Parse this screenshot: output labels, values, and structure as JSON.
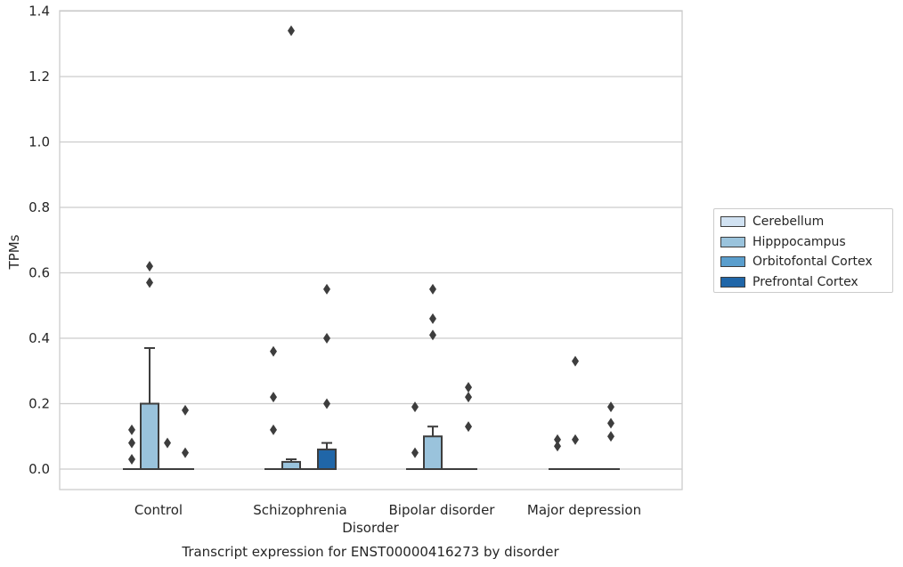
{
  "chart_data": {
    "type": "box",
    "title": "Transcript expression for ENST00000416273 by disorder",
    "xlabel": "Disorder",
    "ylabel": "TPMs",
    "ylim": [
      -0.065,
      1.41
    ],
    "yticks": [
      "0.0",
      "0.2",
      "0.4",
      "0.6",
      "0.8",
      "1.0",
      "1.2",
      "1.4"
    ],
    "grid": true,
    "legend_position": "right",
    "categories": [
      "Control",
      "Schizophrenia",
      "Bipolar disorder",
      "Major depression"
    ],
    "series": [
      {
        "name": "Cerebellum",
        "color": "#d1e2f2",
        "boxes": [
          {
            "q1": 0,
            "median": 0,
            "q3": 0,
            "whisker_low": 0,
            "whisker_high": 0,
            "outliers": [
              0.12,
              0.08,
              0.03
            ]
          },
          {
            "q1": 0,
            "median": 0,
            "q3": 0,
            "whisker_low": 0,
            "whisker_high": 0,
            "outliers": [
              0.36,
              0.22,
              0.12
            ]
          },
          {
            "q1": 0,
            "median": 0,
            "q3": 0,
            "whisker_low": 0,
            "whisker_high": 0,
            "outliers": [
              0.19,
              0.05
            ]
          },
          {
            "q1": 0,
            "median": 0,
            "q3": 0,
            "whisker_low": 0,
            "whisker_high": 0,
            "outliers": [
              0.09,
              0.07
            ]
          }
        ]
      },
      {
        "name": "Hipppocampus",
        "color": "#9ac3dc",
        "boxes": [
          {
            "q1": 0,
            "median": 0,
            "q3": 0.2,
            "whisker_low": 0,
            "whisker_high": 0.37,
            "outliers": [
              0.62,
              0.57
            ]
          },
          {
            "q1": 0,
            "median": 0,
            "q3": 0.022,
            "whisker_low": 0,
            "whisker_high": 0.03,
            "outliers": [
              1.34
            ]
          },
          {
            "q1": 0,
            "median": 0,
            "q3": 0.1,
            "whisker_low": 0,
            "whisker_high": 0.13,
            "outliers": [
              0.55,
              0.46,
              0.41
            ]
          },
          {
            "q1": 0,
            "median": 0,
            "q3": 0,
            "whisker_low": 0,
            "whisker_high": 0,
            "outliers": [
              0.33,
              0.09
            ]
          }
        ]
      },
      {
        "name": "Orbitofontal Cortex",
        "color": "#5a9ecd",
        "boxes": [
          {
            "q1": 0,
            "median": 0,
            "q3": 0,
            "whisker_low": 0,
            "whisker_high": 0,
            "outliers": [
              0.08
            ]
          },
          {
            "q1": 0,
            "median": 0,
            "q3": 0,
            "whisker_low": 0,
            "whisker_high": 0,
            "outliers": []
          },
          {
            "q1": 0,
            "median": 0,
            "q3": 0,
            "whisker_low": 0,
            "whisker_high": 0,
            "outliers": []
          },
          {
            "q1": 0,
            "median": 0,
            "q3": 0,
            "whisker_low": 0,
            "whisker_high": 0,
            "outliers": []
          }
        ]
      },
      {
        "name": "Prefrontal Cortex",
        "color": "#2066a8",
        "boxes": [
          {
            "q1": 0,
            "median": 0,
            "q3": 0,
            "whisker_low": 0,
            "whisker_high": 0,
            "outliers": [
              0.18,
              0.05
            ]
          },
          {
            "q1": 0,
            "median": 0,
            "q3": 0.06,
            "whisker_low": 0,
            "whisker_high": 0.08,
            "outliers": [
              0.55,
              0.4,
              0.2
            ]
          },
          {
            "q1": 0,
            "median": 0,
            "q3": 0,
            "whisker_low": 0,
            "whisker_high": 0,
            "outliers": [
              0.25,
              0.22,
              0.13
            ]
          },
          {
            "q1": 0,
            "median": 0,
            "q3": 0,
            "whisker_low": 0,
            "whisker_high": 0,
            "outliers": [
              0.19,
              0.14,
              0.1
            ]
          }
        ]
      }
    ]
  }
}
